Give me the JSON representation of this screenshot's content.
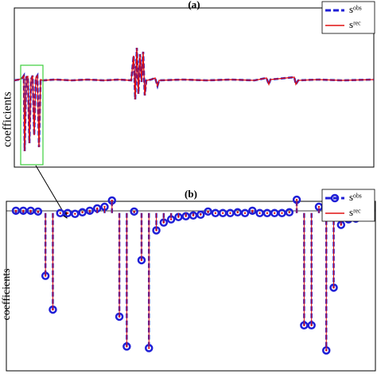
{
  "chart_data": [
    {
      "type": "line",
      "title": "(a)",
      "ylabel": "coefficients",
      "x": [
        0,
        6,
        10,
        12,
        13,
        15,
        17,
        19,
        21,
        23,
        25,
        27,
        29,
        31,
        33,
        36,
        52,
        72,
        92,
        112,
        132,
        147,
        150,
        152,
        154,
        156,
        158,
        160,
        162,
        164,
        166,
        172,
        177,
        180,
        182,
        212,
        242,
        272,
        302,
        317,
        320,
        322,
        352,
        354,
        357,
        382,
        412,
        452
      ],
      "xlim": [
        0,
        452
      ],
      "ylim": [
        -109,
        91
      ],
      "series": [
        {
          "name": "sᵒᵇˢ",
          "color": "#1f1fd6",
          "values": [
            0,
            1,
            3,
            6,
            -89,
            4,
            5,
            -79,
            1,
            6,
            -69,
            3,
            6,
            -84,
            1,
            0,
            1,
            0,
            1,
            0,
            1,
            0,
            31,
            -24,
            41,
            -17,
            33,
            -2,
            36,
            -19,
            0,
            1,
            3,
            -7,
            0,
            1,
            0,
            1,
            0,
            3,
            -5,
            1,
            4,
            -5,
            0,
            1,
            0,
            1
          ]
        },
        {
          "name": "sʳᵉᶜ",
          "color": "#e01010",
          "values": [
            0,
            1,
            3,
            6,
            -89,
            4,
            5,
            -79,
            1,
            6,
            -69,
            3,
            6,
            -84,
            1,
            0,
            1,
            0,
            1,
            0,
            1,
            0,
            31,
            -24,
            41,
            -17,
            33,
            -2,
            36,
            -19,
            0,
            1,
            3,
            -7,
            0,
            1,
            0,
            1,
            0,
            3,
            -5,
            1,
            4,
            -5,
            0,
            1,
            0,
            1
          ]
        }
      ]
    },
    {
      "type": "stem",
      "title": "(b)",
      "ylabel": "coefficients",
      "ylim": [
        -201,
        15
      ],
      "series": [
        {
          "name": "sᵒᵇˢ",
          "color": "#1f1fd6",
          "values": [
            3,
            3,
            3,
            2,
            -80,
            -123,
            0,
            0,
            -1,
            1,
            3,
            6,
            8,
            16,
            -132,
            -170,
            2,
            -60,
            -172,
            -22,
            -12,
            -8,
            -5,
            -4,
            -3,
            -2,
            2,
            0,
            0,
            0,
            1,
            0,
            3,
            0,
            0,
            0,
            0,
            1,
            17,
            -143,
            -143,
            8,
            -175,
            -95,
            -15,
            -8,
            -7,
            3,
            4
          ]
        },
        {
          "name": "sʳᵉᶜ",
          "color": "#e01010",
          "values": [
            3,
            3,
            3,
            2,
            -80,
            -123,
            0,
            0,
            -1,
            1,
            3,
            6,
            8,
            16,
            -132,
            -170,
            2,
            -60,
            -172,
            -22,
            -12,
            -8,
            -5,
            -4,
            -3,
            -2,
            2,
            0,
            0,
            0,
            1,
            0,
            3,
            0,
            0,
            0,
            0,
            1,
            17,
            -143,
            -143,
            8,
            -175,
            -95,
            -15,
            -8,
            -7,
            3,
            4
          ]
        }
      ]
    }
  ]
}
